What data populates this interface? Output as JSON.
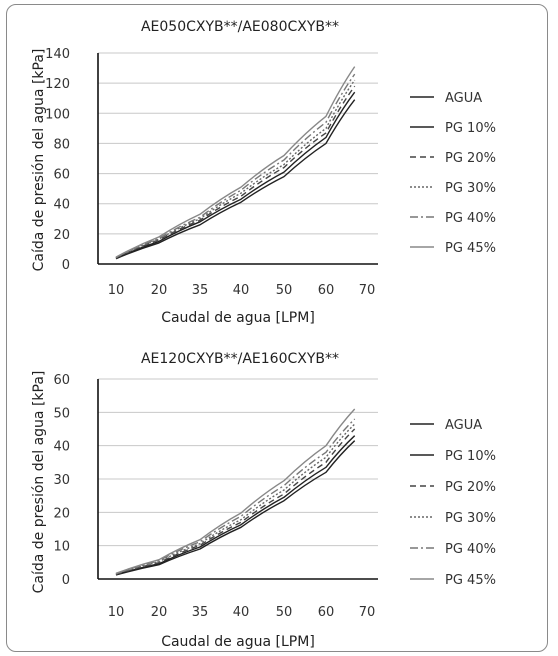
{
  "chart_data": [
    {
      "type": "line",
      "title": "AE050CXYB**/AE080CXYB**",
      "xlabel": "Caudal de agua [LPM]",
      "ylabel": "Caída de presión del agua [kPa]",
      "x_ticks": [
        "10",
        "20",
        "35",
        "40",
        "50",
        "60",
        "70"
      ],
      "y_ticks": [
        "0",
        "20",
        "40",
        "60",
        "80",
        "100",
        "120",
        "140"
      ],
      "ylim": [
        0,
        140
      ],
      "grid": "horizontal",
      "legend_position": "right",
      "x": [
        10,
        20,
        35,
        40,
        50,
        60,
        67
      ],
      "series": [
        {
          "name": "AGUA",
          "values": [
            3.5,
            14,
            26,
            41,
            58,
            80,
            109
          ],
          "color": "#222222",
          "dash": "solid"
        },
        {
          "name": "PG 10%",
          "values": [
            3.8,
            15,
            28,
            43,
            61,
            84,
            114
          ],
          "color": "#222222",
          "dash": "solid"
        },
        {
          "name": "PG 20%",
          "values": [
            4.0,
            16,
            29,
            45,
            64,
            87,
            118
          ],
          "color": "#444444",
          "dash": "dashed"
        },
        {
          "name": "PG 30%",
          "values": [
            4.2,
            16.5,
            30,
            47,
            66,
            90,
            122
          ],
          "color": "#666666",
          "dash": "dotted"
        },
        {
          "name": "PG 40%",
          "values": [
            4.4,
            17,
            31,
            49,
            69,
            94,
            126
          ],
          "color": "#777777",
          "dash": "dashdot"
        },
        {
          "name": "PG 45%",
          "values": [
            4.6,
            18,
            33,
            51,
            72,
            98,
            131
          ],
          "color": "#888888",
          "dash": "solid"
        }
      ]
    },
    {
      "type": "line",
      "title": "AE120CXYB**/AE160CXYB**",
      "xlabel": "Caudal de agua [LPM]",
      "ylabel": "Caída de presión del agua [kPa]",
      "x_ticks": [
        "10",
        "20",
        "35",
        "40",
        "50",
        "60",
        "70"
      ],
      "y_ticks": [
        "0",
        "10",
        "20",
        "30",
        "40",
        "50",
        "60"
      ],
      "ylim": [
        0,
        60
      ],
      "grid": "horizontal",
      "legend_position": "right",
      "x": [
        10,
        20,
        35,
        40,
        50,
        60,
        67
      ],
      "series": [
        {
          "name": "AGUA",
          "values": [
            1.2,
            4.3,
            9.0,
            15.5,
            23.5,
            32.0,
            41.5
          ],
          "color": "#222222",
          "dash": "solid"
        },
        {
          "name": "PG 10%",
          "values": [
            1.3,
            4.6,
            9.6,
            16.3,
            24.5,
            33.5,
            43.0
          ],
          "color": "#222222",
          "dash": "solid"
        },
        {
          "name": "PG 20%",
          "values": [
            1.4,
            4.9,
            10.1,
            17.0,
            25.5,
            35.0,
            45.0
          ],
          "color": "#444444",
          "dash": "dashed"
        },
        {
          "name": "PG 30%",
          "values": [
            1.5,
            5.2,
            10.6,
            17.8,
            26.7,
            36.5,
            46.5
          ],
          "color": "#666666",
          "dash": "dotted"
        },
        {
          "name": "PG 40%",
          "values": [
            1.6,
            5.5,
            11.2,
            18.8,
            28.0,
            38.0,
            48.0
          ],
          "color": "#777777",
          "dash": "dashdot"
        },
        {
          "name": "PG 45%",
          "values": [
            1.7,
            5.8,
            11.8,
            19.8,
            29.5,
            40.0,
            51.0
          ],
          "color": "#888888",
          "dash": "solid"
        }
      ]
    }
  ]
}
